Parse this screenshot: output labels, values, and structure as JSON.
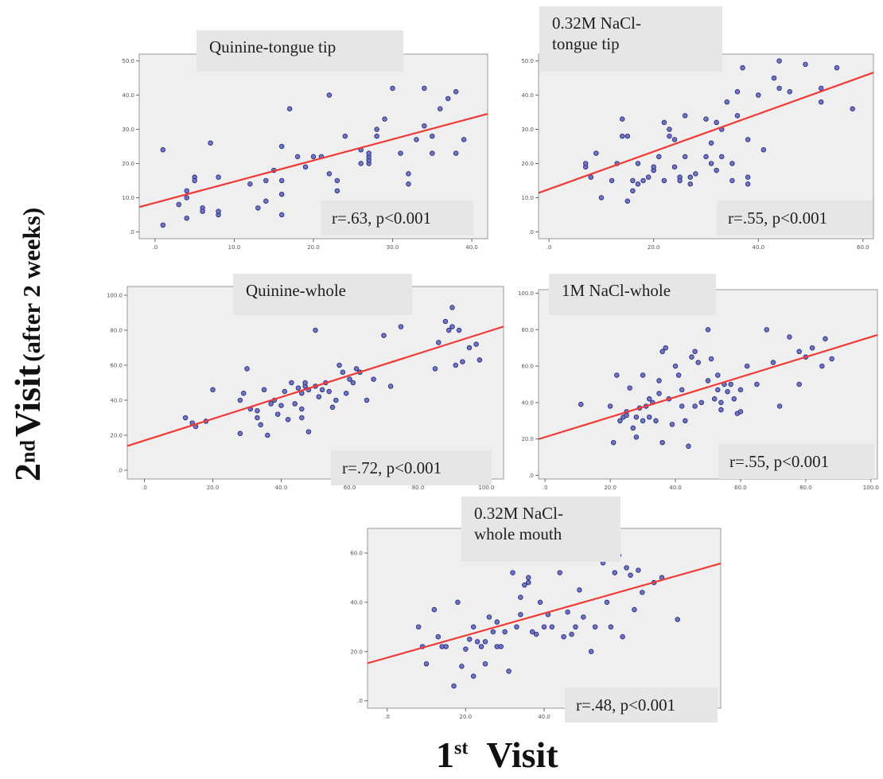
{
  "axis_titles": {
    "y_ordinal_num": "2",
    "y_ordinal_sup": "nd",
    "y_main": "Visit",
    "y_sub": "(after 2 weeks)",
    "x_ordinal_num": "1",
    "x_ordinal_sup": "st",
    "x_main": "Visit"
  },
  "colors": {
    "point_fill": "#6f74c4",
    "point_stroke": "#2b2f7a",
    "fit_line": "#f03a36",
    "plot_bg": "#efefef",
    "label_bg": "#e6e6e6"
  },
  "chart_data": [
    {
      "type": "scatter",
      "title": "Quinine-tongue tip",
      "stat": "r=.63, p<0.001",
      "xlim": [
        -2,
        42
      ],
      "ylim": [
        -2,
        52
      ],
      "xticks": [
        0,
        10,
        20,
        30,
        40
      ],
      "xtick_labels": [
        ".0",
        "10.0",
        "20.0",
        "30.0",
        "40.0"
      ],
      "yticks": [
        0,
        10,
        20,
        30,
        40,
        50
      ],
      "ytick_labels": [
        ".0",
        "10.0",
        "20.0",
        "30.0",
        "40.0",
        "50.0"
      ],
      "fit": {
        "intercept": 8.5,
        "slope": 0.62
      },
      "points": [
        [
          1,
          24
        ],
        [
          1,
          2
        ],
        [
          3,
          8
        ],
        [
          4,
          12
        ],
        [
          4,
          10
        ],
        [
          4,
          4
        ],
        [
          5,
          16
        ],
        [
          5,
          15
        ],
        [
          6,
          7
        ],
        [
          6,
          6
        ],
        [
          7,
          26
        ],
        [
          8,
          16
        ],
        [
          8,
          5
        ],
        [
          8,
          6
        ],
        [
          12,
          14
        ],
        [
          13,
          7
        ],
        [
          14,
          9
        ],
        [
          14,
          15
        ],
        [
          15,
          18
        ],
        [
          16,
          15
        ],
        [
          16,
          11
        ],
        [
          16,
          5
        ],
        [
          16,
          25
        ],
        [
          17,
          36
        ],
        [
          18,
          22
        ],
        [
          19,
          19
        ],
        [
          20,
          22
        ],
        [
          21,
          22
        ],
        [
          22,
          40
        ],
        [
          22,
          17
        ],
        [
          23,
          15
        ],
        [
          23,
          12
        ],
        [
          24,
          28
        ],
        [
          26,
          20
        ],
        [
          26,
          24
        ],
        [
          27,
          20
        ],
        [
          27,
          21
        ],
        [
          27,
          22
        ],
        [
          27,
          23
        ],
        [
          28,
          30
        ],
        [
          28,
          28
        ],
        [
          29,
          33
        ],
        [
          30,
          42
        ],
        [
          31,
          23
        ],
        [
          32,
          17
        ],
        [
          32,
          14
        ],
        [
          33,
          27
        ],
        [
          34,
          42
        ],
        [
          34,
          31
        ],
        [
          35,
          28
        ],
        [
          35,
          23
        ],
        [
          36,
          36
        ],
        [
          37,
          39
        ],
        [
          38,
          41
        ],
        [
          38,
          23
        ],
        [
          39,
          27
        ]
      ]
    },
    {
      "type": "scatter",
      "title": "0.32M NaCl-\ntongue tip",
      "stat": "r=.55, p<0.001",
      "xlim": [
        -2,
        62
      ],
      "ylim": [
        -2,
        52
      ],
      "xticks": [
        0,
        20,
        40,
        60
      ],
      "xtick_labels": [
        ".0",
        "20.0",
        "40.0",
        "60.0"
      ],
      "yticks": [
        0,
        10,
        20,
        30,
        40,
        50
      ],
      "ytick_labels": [
        ".0",
        "10.0",
        "20.0",
        "30.0",
        "40.0",
        "50.0"
      ],
      "fit": {
        "intercept": 12.5,
        "slope": 0.55
      },
      "points": [
        [
          7,
          19
        ],
        [
          7,
          20
        ],
        [
          8,
          16
        ],
        [
          9,
          23
        ],
        [
          10,
          10
        ],
        [
          12,
          15
        ],
        [
          13,
          20
        ],
        [
          14,
          28
        ],
        [
          14,
          33
        ],
        [
          15,
          9
        ],
        [
          15,
          28
        ],
        [
          16,
          15
        ],
        [
          16,
          12
        ],
        [
          17,
          14
        ],
        [
          17,
          20
        ],
        [
          18,
          15
        ],
        [
          19,
          16
        ],
        [
          20,
          18
        ],
        [
          20,
          19
        ],
        [
          21,
          22
        ],
        [
          22,
          32
        ],
        [
          22,
          15
        ],
        [
          23,
          28
        ],
        [
          23,
          30
        ],
        [
          24,
          27
        ],
        [
          24,
          19
        ],
        [
          25,
          16
        ],
        [
          25,
          15
        ],
        [
          26,
          22
        ],
        [
          26,
          34
        ],
        [
          27,
          16
        ],
        [
          27,
          14
        ],
        [
          28,
          17
        ],
        [
          30,
          33
        ],
        [
          30,
          22
        ],
        [
          31,
          20
        ],
        [
          31,
          26
        ],
        [
          32,
          18
        ],
        [
          32,
          32
        ],
        [
          33,
          22
        ],
        [
          33,
          30
        ],
        [
          34,
          38
        ],
        [
          35,
          15
        ],
        [
          35,
          20
        ],
        [
          36,
          34
        ],
        [
          36,
          41
        ],
        [
          37,
          48
        ],
        [
          38,
          27
        ],
        [
          38,
          16
        ],
        [
          38,
          14
        ],
        [
          40,
          40
        ],
        [
          41,
          24
        ],
        [
          43,
          45
        ],
        [
          44,
          50
        ],
        [
          44,
          42
        ],
        [
          46,
          41
        ],
        [
          49,
          49
        ],
        [
          52,
          42
        ],
        [
          52,
          38
        ],
        [
          55,
          48
        ],
        [
          58,
          36
        ]
      ]
    },
    {
      "type": "scatter",
      "title": "Quinine-whole",
      "stat": "r=.72, p<0.001",
      "xlim": [
        -5,
        105
      ],
      "ylim": [
        -5,
        105
      ],
      "xticks": [
        0,
        20,
        40,
        60,
        80,
        100
      ],
      "xtick_labels": [
        ".0",
        "20.0",
        "40.0",
        "60.0",
        "80.0",
        "100.0"
      ],
      "yticks": [
        0,
        20,
        40,
        60,
        80,
        100
      ],
      "ytick_labels": [
        ".0",
        "20.0",
        "40.0",
        "60.0",
        "80.0",
        "100.0"
      ],
      "fit": {
        "intercept": 17,
        "slope": 0.62
      },
      "points": [
        [
          12,
          30
        ],
        [
          14,
          27
        ],
        [
          15,
          25
        ],
        [
          18,
          28
        ],
        [
          20,
          46
        ],
        [
          28,
          40
        ],
        [
          28,
          21
        ],
        [
          29,
          44
        ],
        [
          30,
          58
        ],
        [
          31,
          35
        ],
        [
          33,
          34
        ],
        [
          33,
          30
        ],
        [
          34,
          26
        ],
        [
          35,
          46
        ],
        [
          36,
          20
        ],
        [
          37,
          38
        ],
        [
          38,
          40
        ],
        [
          39,
          32
        ],
        [
          40,
          37
        ],
        [
          41,
          45
        ],
        [
          42,
          29
        ],
        [
          43,
          50
        ],
        [
          44,
          38
        ],
        [
          45,
          47
        ],
        [
          46,
          44
        ],
        [
          46,
          35
        ],
        [
          46,
          30
        ],
        [
          47,
          48
        ],
        [
          47,
          50
        ],
        [
          48,
          22
        ],
        [
          48,
          46
        ],
        [
          50,
          48
        ],
        [
          50,
          80
        ],
        [
          51,
          42
        ],
        [
          52,
          46
        ],
        [
          53,
          50
        ],
        [
          54,
          45
        ],
        [
          55,
          36
        ],
        [
          56,
          40
        ],
        [
          57,
          60
        ],
        [
          58,
          56
        ],
        [
          59,
          44
        ],
        [
          60,
          52
        ],
        [
          61,
          50
        ],
        [
          62,
          58
        ],
        [
          63,
          56
        ],
        [
          65,
          40
        ],
        [
          67,
          52
        ],
        [
          70,
          77
        ],
        [
          72,
          48
        ],
        [
          75,
          82
        ],
        [
          85,
          58
        ],
        [
          86,
          73
        ],
        [
          88,
          85
        ],
        [
          89,
          80
        ],
        [
          90,
          82
        ],
        [
          90,
          93
        ],
        [
          91,
          60
        ],
        [
          92,
          80
        ],
        [
          93,
          62
        ],
        [
          95,
          70
        ],
        [
          97,
          72
        ],
        [
          98,
          63
        ]
      ]
    },
    {
      "type": "scatter",
      "title": "1M NaCl-whole",
      "stat": "r=.55, p<0.001",
      "xlim": [
        -2,
        102
      ],
      "ylim": [
        -2,
        102
      ],
      "xticks": [
        0,
        20,
        40,
        60,
        80,
        100
      ],
      "xtick_labels": [
        ".0",
        "20.0",
        "40.0",
        "60.0",
        "80.0",
        "100.0"
      ],
      "yticks": [
        0,
        20,
        40,
        60,
        80,
        100
      ],
      "ytick_labels": [
        ".0",
        "20.0",
        "40.0",
        "60.0",
        "80.0",
        "100.0"
      ],
      "fit": {
        "intercept": 21,
        "slope": 0.55
      },
      "points": [
        [
          11,
          39
        ],
        [
          20,
          38
        ],
        [
          21,
          18
        ],
        [
          22,
          55
        ],
        [
          23,
          30
        ],
        [
          24,
          32
        ],
        [
          25,
          35
        ],
        [
          25,
          33
        ],
        [
          26,
          48
        ],
        [
          27,
          26
        ],
        [
          28,
          21
        ],
        [
          28,
          32
        ],
        [
          29,
          37
        ],
        [
          30,
          30
        ],
        [
          30,
          55
        ],
        [
          31,
          38
        ],
        [
          32,
          42
        ],
        [
          32,
          32
        ],
        [
          33,
          40
        ],
        [
          34,
          30
        ],
        [
          35,
          52
        ],
        [
          35,
          45
        ],
        [
          36,
          68
        ],
        [
          36,
          18
        ],
        [
          37,
          70
        ],
        [
          38,
          42
        ],
        [
          39,
          28
        ],
        [
          40,
          60
        ],
        [
          41,
          55
        ],
        [
          42,
          47
        ],
        [
          42,
          38
        ],
        [
          43,
          30
        ],
        [
          44,
          16
        ],
        [
          45,
          65
        ],
        [
          46,
          68
        ],
        [
          46,
          38
        ],
        [
          47,
          62
        ],
        [
          48,
          40
        ],
        [
          50,
          52
        ],
        [
          50,
          80
        ],
        [
          51,
          64
        ],
        [
          52,
          42
        ],
        [
          53,
          55
        ],
        [
          53,
          47
        ],
        [
          54,
          40
        ],
        [
          54,
          36
        ],
        [
          55,
          50
        ],
        [
          56,
          46
        ],
        [
          57,
          50
        ],
        [
          58,
          42
        ],
        [
          59,
          34
        ],
        [
          60,
          35
        ],
        [
          60,
          47
        ],
        [
          62,
          60
        ],
        [
          65,
          50
        ],
        [
          68,
          80
        ],
        [
          70,
          62
        ],
        [
          72,
          38
        ],
        [
          75,
          76
        ],
        [
          78,
          68
        ],
        [
          78,
          50
        ],
        [
          80,
          65
        ],
        [
          82,
          70
        ],
        [
          85,
          60
        ],
        [
          86,
          75
        ],
        [
          88,
          64
        ]
      ]
    },
    {
      "type": "scatter",
      "title": "0.32M NaCl-\nwhole mouth",
      "stat": "r=.48, p<0.001",
      "xlim": [
        -5,
        85
      ],
      "ylim": [
        -3,
        70
      ],
      "xticks": [
        0,
        20,
        40,
        60,
        80
      ],
      "xtick_labels": [
        ".0",
        "20.0",
        "40.0",
        "60.0",
        "80.0"
      ],
      "yticks": [
        0,
        20,
        40,
        60
      ],
      "ytick_labels": [
        ".0",
        "20.0",
        "40.0",
        "60.0"
      ],
      "fit": {
        "intercept": 17.5,
        "slope": 0.45
      },
      "points": [
        [
          8,
          30
        ],
        [
          9,
          22
        ],
        [
          10,
          15
        ],
        [
          12,
          37
        ],
        [
          13,
          26
        ],
        [
          14,
          22
        ],
        [
          15,
          22
        ],
        [
          17,
          6
        ],
        [
          18,
          40
        ],
        [
          19,
          14
        ],
        [
          20,
          21
        ],
        [
          21,
          25
        ],
        [
          22,
          30
        ],
        [
          22,
          10
        ],
        [
          23,
          24
        ],
        [
          24,
          22
        ],
        [
          25,
          15
        ],
        [
          25,
          24
        ],
        [
          26,
          34
        ],
        [
          27,
          28
        ],
        [
          28,
          32
        ],
        [
          28,
          22
        ],
        [
          29,
          22
        ],
        [
          30,
          28
        ],
        [
          31,
          12
        ],
        [
          32,
          52
        ],
        [
          33,
          30
        ],
        [
          34,
          35
        ],
        [
          34,
          42
        ],
        [
          35,
          47
        ],
        [
          36,
          48
        ],
        [
          36,
          50
        ],
        [
          37,
          28
        ],
        [
          38,
          27
        ],
        [
          39,
          40
        ],
        [
          40,
          30
        ],
        [
          41,
          35
        ],
        [
          42,
          30
        ],
        [
          44,
          52
        ],
        [
          45,
          26
        ],
        [
          46,
          36
        ],
        [
          47,
          27
        ],
        [
          48,
          30
        ],
        [
          49,
          45
        ],
        [
          50,
          34
        ],
        [
          52,
          20
        ],
        [
          53,
          30
        ],
        [
          55,
          56
        ],
        [
          56,
          40
        ],
        [
          57,
          30
        ],
        [
          58,
          52
        ],
        [
          59,
          59
        ],
        [
          60,
          26
        ],
        [
          61,
          54
        ],
        [
          62,
          51
        ],
        [
          63,
          37
        ],
        [
          64,
          53
        ],
        [
          65,
          44
        ],
        [
          68,
          48
        ],
        [
          70,
          50
        ],
        [
          74,
          33
        ]
      ]
    }
  ]
}
